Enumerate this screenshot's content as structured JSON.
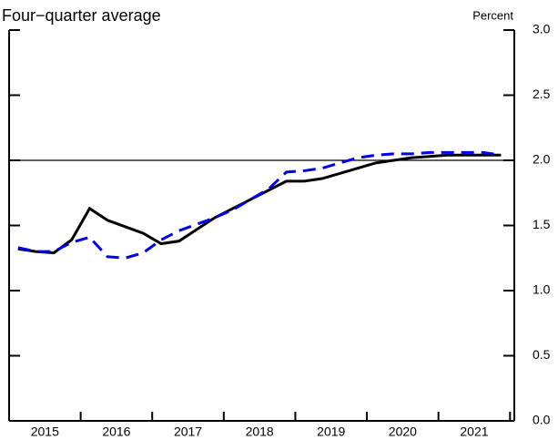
{
  "chart_data": {
    "type": "line",
    "title": "Four−quarter average",
    "y_label": "Percent",
    "x": [
      2015.125,
      2015.375,
      2015.625,
      2015.875,
      2016.125,
      2016.375,
      2016.625,
      2016.875,
      2017.125,
      2017.375,
      2017.625,
      2017.875,
      2018.125,
      2018.375,
      2018.625,
      2018.875,
      2019.125,
      2019.375,
      2019.625,
      2019.875,
      2020.125,
      2020.375,
      2020.625,
      2020.875,
      2021.125,
      2021.375,
      2021.625,
      2021.875
    ],
    "series": [
      {
        "color": "#000000",
        "dash": "solid",
        "values": [
          1.32,
          1.3,
          1.29,
          1.39,
          1.63,
          1.54,
          1.49,
          1.44,
          1.36,
          1.38,
          1.47,
          1.56,
          1.63,
          1.7,
          1.77,
          1.84,
          1.84,
          1.86,
          1.9,
          1.94,
          1.98,
          2.0,
          2.02,
          2.03,
          2.04,
          2.04,
          2.04,
          2.04
        ]
      },
      {
        "color": "#0000ee",
        "dash": "dashed",
        "values": [
          1.33,
          1.3,
          1.3,
          1.37,
          1.41,
          1.26,
          1.25,
          1.29,
          1.39,
          1.46,
          1.51,
          1.56,
          1.62,
          1.7,
          1.78,
          1.91,
          1.92,
          1.94,
          1.98,
          2.02,
          2.04,
          2.05,
          2.05,
          2.06,
          2.06,
          2.06,
          2.06,
          2.04
        ]
      }
    ],
    "xlim": [
      2015,
      2022.06
    ],
    "xticks": [
      {
        "value": 2015.5,
        "label": "2015"
      },
      {
        "value": 2016.5,
        "label": "2016"
      },
      {
        "value": 2017.5,
        "label": "2017"
      },
      {
        "value": 2018.5,
        "label": "2018"
      },
      {
        "value": 2019.5,
        "label": "2019"
      },
      {
        "value": 2020.5,
        "label": "2020"
      },
      {
        "value": 2021.5,
        "label": "2021"
      }
    ],
    "xminorticks": [
      2016,
      2017,
      2018,
      2019,
      2020,
      2021,
      2022
    ],
    "ylim": [
      0,
      3
    ],
    "yticks": [
      {
        "value": 0,
        "label": "0.0"
      },
      {
        "value": 0.5,
        "label": "0.5"
      },
      {
        "value": 1,
        "label": "1.0"
      },
      {
        "value": 1.5,
        "label": "1.5"
      },
      {
        "value": 2,
        "label": "2.0"
      },
      {
        "value": 2.5,
        "label": "2.5"
      },
      {
        "value": 3,
        "label": "3.0"
      }
    ],
    "hline": 2
  }
}
